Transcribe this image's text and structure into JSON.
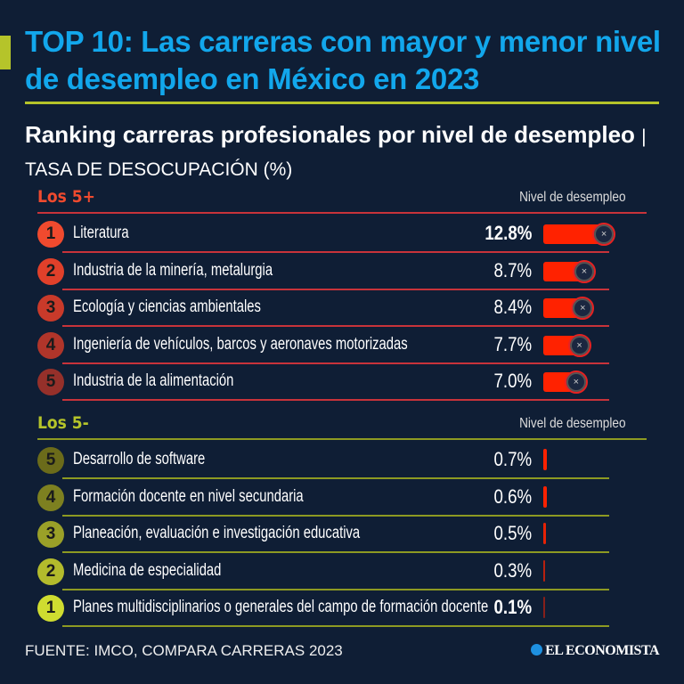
{
  "title": "TOP 10: Las carreras con mayor y menor nivel de desempleo en México en 2023",
  "subtitle_bold": "Ranking carreras profesionales por nivel de desempleo",
  "subtitle_sep": "|",
  "subtitle_thin": "TASA DE DESOCUPACIÓN (%)",
  "colors": {
    "background": "#0f1e35",
    "title": "#12a7ec",
    "accent": "#b5c42a",
    "bar": "#ff2200",
    "top_section": "#f04a2e",
    "bottom_section": "#b5c42a"
  },
  "chart_data": {
    "type": "bar",
    "orientation": "horizontal",
    "unit": "%",
    "groups": [
      {
        "label": "Los 5+",
        "column_header": "Nivel de desempleo",
        "items": [
          {
            "rank": "1",
            "category": "Literatura",
            "value": 12.8,
            "value_label": "12.8%"
          },
          {
            "rank": "2",
            "category": "Industria de la minería, metalurgia",
            "value": 8.7,
            "value_label": "8.7%"
          },
          {
            "rank": "3",
            "category": "Ecología y ciencias ambientales",
            "value": 8.4,
            "value_label": "8.4%"
          },
          {
            "rank": "4",
            "category": "Ingeniería de vehículos, barcos y aeronaves motorizadas",
            "value": 7.7,
            "value_label": "7.7%"
          },
          {
            "rank": "5",
            "category": "Industria de la alimentación",
            "value": 7.0,
            "value_label": "7.0%"
          }
        ]
      },
      {
        "label": "Los 5-",
        "column_header": "Nivel de desempleo",
        "items": [
          {
            "rank": "5",
            "category": "Desarrollo de software",
            "value": 0.7,
            "value_label": "0.7%"
          },
          {
            "rank": "4",
            "category": "Formación docente en nivel secundaria",
            "value": 0.6,
            "value_label": "0.6%"
          },
          {
            "rank": "3",
            "category": "Planeación, evaluación e investigación educativa",
            "value": 0.5,
            "value_label": "0.5%"
          },
          {
            "rank": "2",
            "category": "Medicina de especialidad",
            "value": 0.3,
            "value_label": "0.3%"
          },
          {
            "rank": "1",
            "category": "Planes multidisciplinarios o generales del campo de formación docente",
            "value": 0.1,
            "value_label": "0.1%"
          }
        ]
      }
    ]
  },
  "footer": {
    "source": "FUENTE: IMCO, COMPARA CARRERAS 2023",
    "logo": "EL ECONOMISTA"
  }
}
